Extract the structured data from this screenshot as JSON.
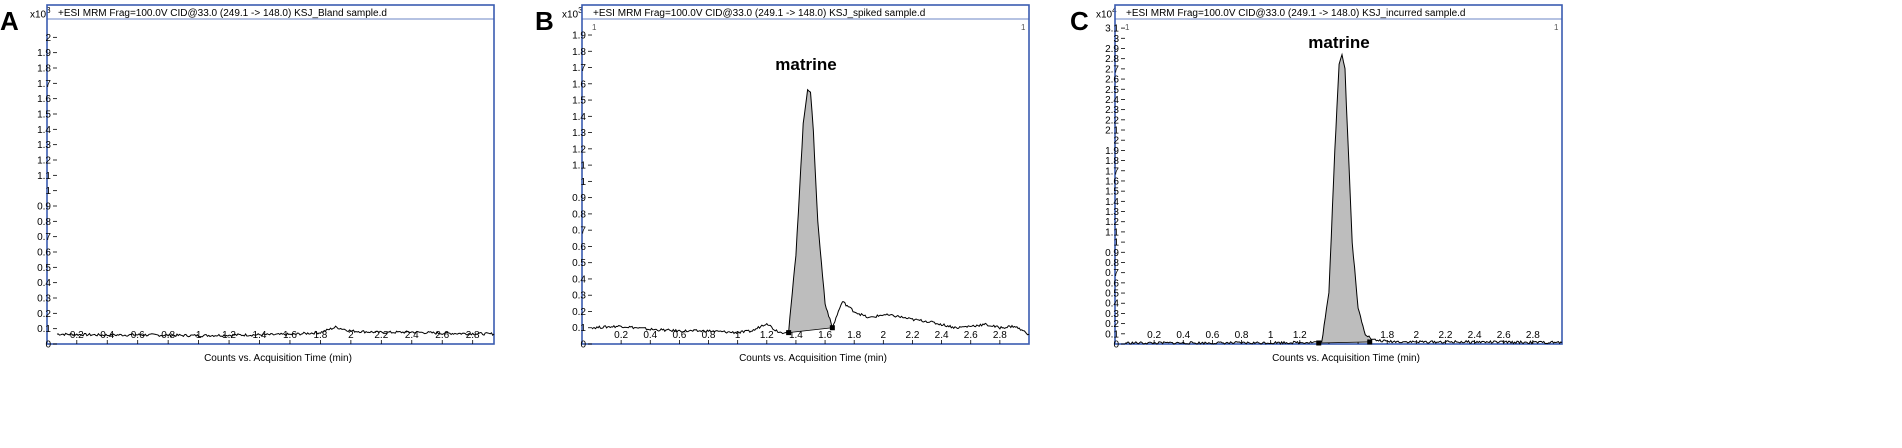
{
  "chart_data": [
    {
      "type": "line",
      "panel_label": "A",
      "title": "+ESI MRM Frag=100.0V CID@33.0 (249.1 -> 148.0) KSJ_Bland sample.d",
      "xlabel": "Counts vs. Acquisition Time (min)",
      "ylabel_multiplier": "x10",
      "ylabel_exponent": "3",
      "xlim": [
        0.07,
        2.94
      ],
      "ylim": [
        0,
        2.1
      ],
      "xticks": [
        0.2,
        0.4,
        0.6,
        0.8,
        1,
        1.2,
        1.4,
        1.6,
        1.8,
        2,
        2.2,
        2.4,
        2.6,
        2.8
      ],
      "yticks": [
        0,
        0.1,
        0.2,
        0.3,
        0.4,
        0.5,
        0.6,
        0.7,
        0.8,
        0.9,
        1,
        1.1,
        1.2,
        1.3,
        1.4,
        1.5,
        1.6,
        1.7,
        1.8,
        1.9,
        2
      ],
      "corner_markers": [],
      "peak_label": "",
      "series": [
        {
          "x": [
            0.07,
            0.2,
            0.4,
            0.6,
            0.8,
            1.0,
            1.2,
            1.4,
            1.6,
            1.8,
            1.9,
            2.0,
            2.2,
            2.4,
            2.6,
            2.8,
            2.94
          ],
          "y": [
            0.065,
            0.062,
            0.058,
            0.06,
            0.057,
            0.055,
            0.058,
            0.06,
            0.062,
            0.075,
            0.11,
            0.085,
            0.075,
            0.078,
            0.07,
            0.068,
            0.065
          ]
        }
      ],
      "peak": null
    },
    {
      "type": "line",
      "panel_label": "B",
      "title": "+ESI MRM Frag=100.0V CID@33.0 (249.1 -> 148.0) KSJ_spiked sample.d",
      "xlabel": "Counts vs. Acquisition Time (min)",
      "ylabel_multiplier": "x10",
      "ylabel_exponent": "3",
      "xlim": [
        0.0,
        3.0
      ],
      "ylim": [
        0,
        1.98
      ],
      "xticks": [
        0.2,
        0.4,
        0.6,
        0.8,
        1,
        1.2,
        1.4,
        1.6,
        1.8,
        2,
        2.2,
        2.4,
        2.6,
        2.8
      ],
      "yticks": [
        0,
        0.1,
        0.2,
        0.3,
        0.4,
        0.5,
        0.6,
        0.7,
        0.8,
        0.9,
        1,
        1.1,
        1.2,
        1.3,
        1.4,
        1.5,
        1.6,
        1.7,
        1.8,
        1.9
      ],
      "corner_markers": [
        "1",
        "1"
      ],
      "peak_label": "matrine",
      "series": [
        {
          "x": [
            0.0,
            0.2,
            0.4,
            0.6,
            0.8,
            1.0,
            1.1,
            1.2,
            1.25,
            1.3,
            1.35,
            1.4,
            1.45,
            1.48,
            1.5,
            1.52,
            1.55,
            1.6,
            1.65,
            1.7,
            1.72,
            1.76,
            1.8,
            1.9,
            2.0,
            2.1,
            2.2,
            2.3,
            2.4,
            2.5,
            2.6,
            2.7,
            2.8,
            2.9,
            3.0
          ],
          "y": [
            0.1,
            0.11,
            0.09,
            0.08,
            0.08,
            0.07,
            0.08,
            0.13,
            0.09,
            0.07,
            0.08,
            0.55,
            1.35,
            1.57,
            1.55,
            1.3,
            0.75,
            0.25,
            0.1,
            0.22,
            0.26,
            0.23,
            0.2,
            0.16,
            0.18,
            0.17,
            0.15,
            0.14,
            0.12,
            0.1,
            0.11,
            0.12,
            0.1,
            0.11,
            0.06
          ]
        }
      ],
      "peak": {
        "x_start": 1.35,
        "x_end": 1.65,
        "y_start": 0.07,
        "y_end": 0.1
      }
    },
    {
      "type": "line",
      "panel_label": "C",
      "title": "+ESI MRM Frag=100.0V CID@33.0 (249.1 -> 148.0) KSJ_incurred sample.d",
      "xlabel": "Counts vs. Acquisition Time (min)",
      "ylabel_multiplier": "x10",
      "ylabel_exponent": "4",
      "xlim": [
        0.0,
        3.0
      ],
      "ylim": [
        0,
        3.16
      ],
      "xticks": [
        0.2,
        0.4,
        0.6,
        0.8,
        1,
        1.2,
        1.4,
        1.6,
        1.8,
        2,
        2.2,
        2.4,
        2.6,
        2.8
      ],
      "yticks": [
        0,
        0.1,
        0.2,
        0.3,
        0.4,
        0.5,
        0.6,
        0.7,
        0.8,
        0.9,
        1,
        1.1,
        1.2,
        1.3,
        1.4,
        1.5,
        1.6,
        1.7,
        1.8,
        1.9,
        2,
        2.1,
        2.2,
        2.3,
        2.4,
        2.5,
        2.6,
        2.7,
        2.8,
        2.9,
        3,
        3.1
      ],
      "corner_markers": [
        "1",
        "1"
      ],
      "peak_label": "matrine",
      "series": [
        {
          "x": [
            0.0,
            0.4,
            0.8,
            1.2,
            1.35,
            1.4,
            1.44,
            1.47,
            1.49,
            1.51,
            1.53,
            1.56,
            1.6,
            1.65,
            1.7,
            1.8,
            2.0,
            2.4,
            2.8,
            3.0
          ],
          "y": [
            0.01,
            0.01,
            0.01,
            0.015,
            0.02,
            0.5,
            1.9,
            2.75,
            2.84,
            2.7,
            2.0,
            1.0,
            0.35,
            0.1,
            0.04,
            0.025,
            0.02,
            0.02,
            0.015,
            0.015
          ]
        }
      ],
      "peak": {
        "x_start": 1.33,
        "x_end": 1.68,
        "y_start": 0.01,
        "y_end": 0.02
      }
    }
  ]
}
